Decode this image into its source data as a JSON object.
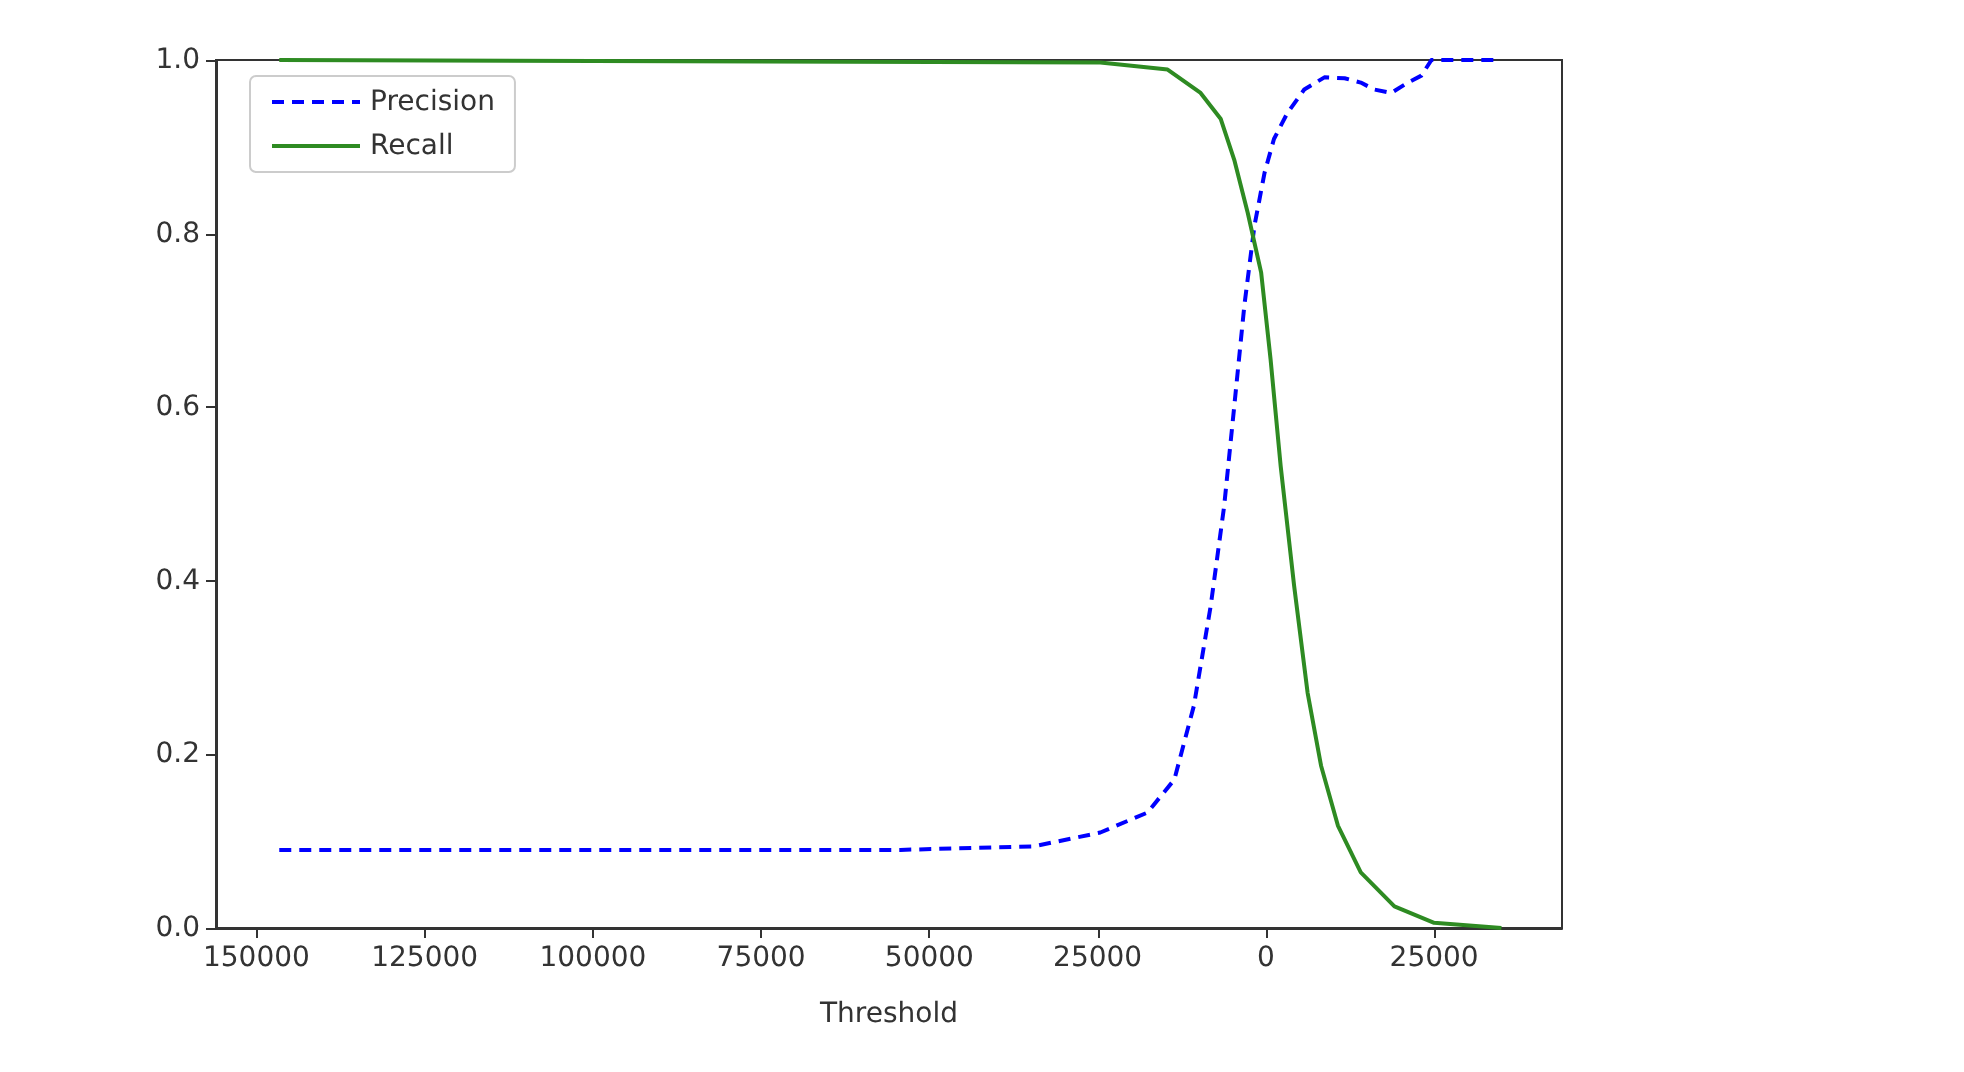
{
  "chart_data": {
    "type": "line",
    "xlabel": "Threshold",
    "xlim": [
      -156000,
      44000
    ],
    "ylim": [
      0,
      1
    ],
    "xticks": [
      {
        "value": -150000,
        "label": "150000"
      },
      {
        "value": -125000,
        "label": "125000"
      },
      {
        "value": -100000,
        "label": "100000"
      },
      {
        "value": -75000,
        "label": "75000"
      },
      {
        "value": -50000,
        "label": "50000"
      },
      {
        "value": -25000,
        "label": "25000"
      },
      0,
      25000
    ],
    "yticks": [
      {
        "value": 0,
        "label": "0.0"
      },
      0.2,
      0.4,
      0.6,
      0.8,
      {
        "value": 1,
        "label": "1.0"
      }
    ],
    "grid": false,
    "legend": "top left",
    "marker": "none",
    "series": [
      {
        "name": "Precision",
        "color": "#0000ff",
        "line_style": "dashed",
        "x": [
          -146600,
          -54300,
          -34500,
          -24600,
          -17600,
          -13600,
          -10700,
          -8200,
          -6200,
          -4700,
          -3200,
          -1700,
          -200,
          1200,
          3200,
          5700,
          8700,
          11700,
          14100,
          16100,
          18600,
          21100,
          23100,
          24600,
          34500
        ],
        "values": [
          0.09,
          0.09,
          0.094,
          0.11,
          0.133,
          0.171,
          0.256,
          0.371,
          0.486,
          0.601,
          0.717,
          0.809,
          0.87,
          0.909,
          0.939,
          0.966,
          0.98,
          0.979,
          0.974,
          0.966,
          0.962,
          0.974,
          0.982,
          1.0,
          1.0
        ]
      },
      {
        "name": "Recall",
        "color": "#2e8b22",
        "line_style": "solid",
        "x": [
          -146600,
          -24600,
          -14600,
          -9700,
          -6700,
          -4700,
          -2700,
          -700,
          700,
          2200,
          4200,
          6200,
          8200,
          10700,
          14100,
          19100,
          25000,
          35000
        ],
        "values": [
          1.0,
          0.997,
          0.989,
          0.962,
          0.932,
          0.885,
          0.824,
          0.755,
          0.655,
          0.532,
          0.394,
          0.271,
          0.187,
          0.118,
          0.064,
          0.025,
          0.006,
          0.0
        ]
      }
    ]
  }
}
